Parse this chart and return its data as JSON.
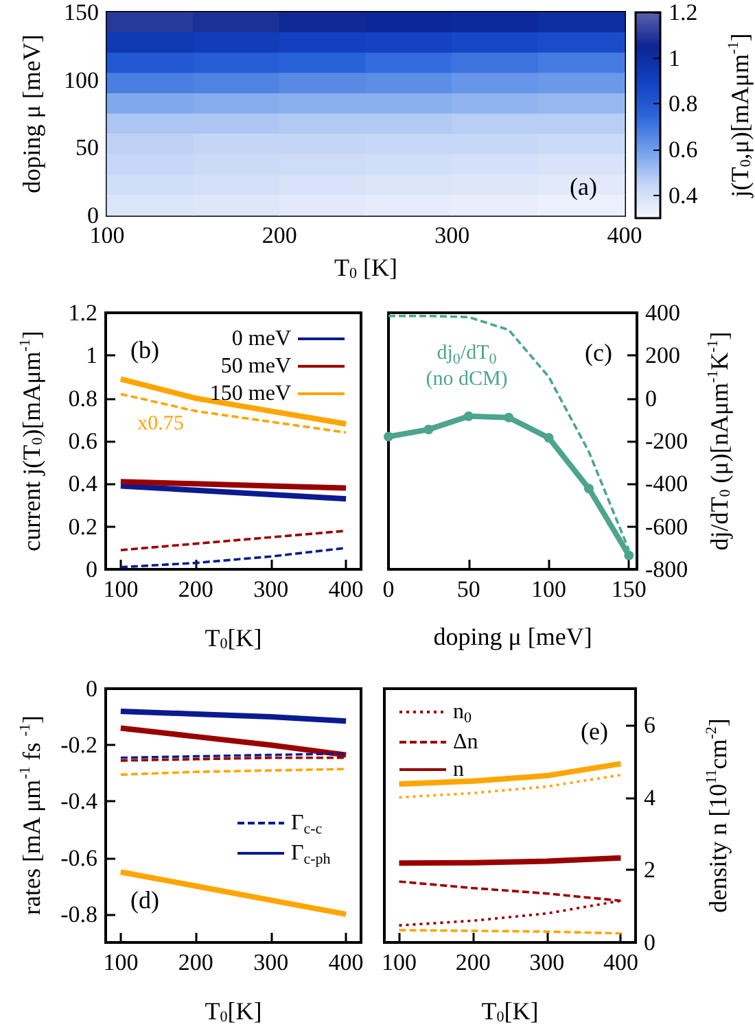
{
  "chart_data": [
    {
      "type": "heatmap",
      "xlabel": "T$_{0}$ [K]",
      "ylabel": "doping μ [meV]",
      "clabel": "j(T$_{0}$,μ)[mAμm$^{-1}$]",
      "annotations": [
        "(a)"
      ],
      "xlim": [
        100,
        400
      ],
      "xticks": [
        100,
        200,
        300,
        400
      ],
      "ylim": [
        0,
        150
      ],
      "yticks": [
        0,
        50,
        100,
        150
      ],
      "clim": [
        0.3,
        1.2
      ],
      "cticks": [
        0.4,
        0.6,
        0.8,
        1,
        1.2
      ],
      "cells": [
        [
          1.1,
          1.08,
          1.06,
          1.04,
          1.02,
          1.0
        ],
        [
          0.94,
          0.92,
          0.9,
          0.89,
          0.87,
          0.85
        ],
        [
          0.8,
          0.78,
          0.76,
          0.73,
          0.71,
          0.69
        ],
        [
          0.68,
          0.67,
          0.65,
          0.64,
          0.62,
          0.61
        ],
        [
          0.57,
          0.56,
          0.55,
          0.55,
          0.54,
          0.53
        ],
        [
          0.49,
          0.49,
          0.48,
          0.48,
          0.47,
          0.47
        ],
        [
          0.46,
          0.45,
          0.45,
          0.44,
          0.44,
          0.43
        ],
        [
          0.44,
          0.43,
          0.42,
          0.41,
          0.4,
          0.39
        ],
        [
          0.41,
          0.4,
          0.39,
          0.38,
          0.37,
          0.36
        ],
        [
          0.38,
          0.37,
          0.36,
          0.35,
          0.34,
          0.33
        ]
      ]
    },
    {
      "type": "line",
      "xlabel": "T$_{0}$[K]",
      "ylabel": "current j(T$_{0}$)[mAμm$^{-1}$]",
      "legend": "top right",
      "annotations": [
        "(b)",
        "x0.75"
      ],
      "x": [
        100,
        200,
        300,
        400
      ],
      "xlim": [
        80,
        420
      ],
      "xticks": [
        100,
        200,
        300,
        400
      ],
      "ylim": [
        0,
        1.2
      ],
      "yticks": [
        0,
        0.2,
        0.4,
        0.6,
        0.8,
        1,
        1.2
      ],
      "series": [
        {
          "name": "0 meV",
          "color": "#0b1b8f",
          "line_style": "solid",
          "values": [
            0.39,
            0.37,
            0.35,
            0.33
          ]
        },
        {
          "name": "50 meV",
          "color": "#990000",
          "line_style": "solid",
          "values": [
            0.41,
            0.4,
            0.39,
            0.38
          ]
        },
        {
          "name": "150 meV",
          "color": "#ffa500",
          "line_style": "solid",
          "values": [
            0.89,
            0.8,
            0.74,
            0.68
          ]
        },
        {
          "color": "#0b1b8f",
          "line_style": "dashed",
          "values": [
            0.01,
            0.03,
            0.06,
            0.1
          ]
        },
        {
          "color": "#990000",
          "line_style": "dashed",
          "values": [
            0.09,
            0.12,
            0.15,
            0.18
          ]
        },
        {
          "color": "#ffa500",
          "line_style": "dashed",
          "values": [
            0.82,
            0.74,
            0.69,
            0.64
          ]
        }
      ]
    },
    {
      "type": "line",
      "xlabel": "doping μ [meV]",
      "y2label": "dj/dT$_{0}$ (μ)[nAμm$^{-1}$K$^{-1}$]",
      "annotations": [
        "(c)",
        "dj$_{0}$/dT$_{0}$\n(no dCM)"
      ],
      "x": [
        0,
        25,
        50,
        75,
        100,
        125,
        150
      ],
      "xlim": [
        0,
        155
      ],
      "xticks": [
        0,
        50,
        100,
        150
      ],
      "y2lim": [
        -800,
        400
      ],
      "y2ticks": [
        -800,
        -600,
        -400,
        -200,
        0,
        200,
        400
      ],
      "series": [
        {
          "color": "#4ca58c",
          "axis": "y2",
          "line_style": "solid",
          "marker": "circle",
          "values": [
            -179,
            -146,
            -84,
            -90,
            -185,
            -422,
            -735
          ]
        },
        {
          "color": "#4ca58c",
          "axis": "y2",
          "line_style": "dashed",
          "values": [
            385,
            385,
            380,
            320,
            100,
            -250,
            -710
          ]
        }
      ]
    },
    {
      "type": "line",
      "xlabel": "T$_{0}$[K]",
      "ylabel": "rates [mA μm$^{-1}$ fs $^{-1}$]",
      "legend": "right",
      "annotations": [
        "(d)"
      ],
      "x": [
        100,
        200,
        300,
        400
      ],
      "xlim": [
        80,
        420
      ],
      "xticks": [
        100,
        200,
        300,
        400
      ],
      "ylim": [
        -0.9,
        0
      ],
      "yticks": [
        -0.8,
        -0.6,
        -0.4,
        -0.2,
        0
      ],
      "series": [
        {
          "name": "Γ$_{c-c}$",
          "color": "#0b1b8f",
          "line_style": "dashed",
          "values": [
            -0.245,
            -0.24,
            -0.235,
            -0.23
          ]
        },
        {
          "name": "Γ$_{c-ph}$",
          "color": "#0b1b8f",
          "line_style": "solid",
          "values": [
            -0.08,
            -0.09,
            -0.1,
            -0.115
          ]
        },
        {
          "color": "#990000",
          "line_style": "solid",
          "values": [
            -0.14,
            -0.17,
            -0.2,
            -0.235
          ]
        },
        {
          "color": "#ffa500",
          "line_style": "solid",
          "values": [
            -0.65,
            -0.7,
            -0.75,
            -0.8
          ]
        },
        {
          "color": "#990000",
          "line_style": "dashed",
          "values": [
            -0.255,
            -0.25,
            -0.245,
            -0.245
          ]
        },
        {
          "color": "#ffa500",
          "line_style": "dashed",
          "values": [
            -0.305,
            -0.295,
            -0.29,
            -0.285
          ]
        }
      ]
    },
    {
      "type": "line",
      "xlabel": "T$_{0}$[K]",
      "y2label": "density n [10$^{11}$cm$^{-2}$]",
      "legend": "top left",
      "annotations": [
        "(e)"
      ],
      "x": [
        100,
        200,
        300,
        400
      ],
      "xlim": [
        80,
        420
      ],
      "xticks": [
        100,
        200,
        300,
        400
      ],
      "y2lim": [
        0,
        7
      ],
      "y2ticks": [
        0,
        2,
        4,
        6
      ],
      "series": [
        {
          "name": "n$_{0}$",
          "color": "#990000",
          "axis": "y2",
          "line_style": "dotted",
          "values": [
            0.47,
            0.6,
            0.8,
            1.15
          ]
        },
        {
          "name": "Δn",
          "color": "#990000",
          "axis": "y2",
          "line_style": "dashed",
          "values": [
            1.68,
            1.5,
            1.35,
            1.15
          ]
        },
        {
          "name": "n",
          "color": "#990000",
          "axis": "y2",
          "line_style": "solid",
          "values": [
            2.19,
            2.2,
            2.24,
            2.33
          ]
        },
        {
          "color": "#ffa500",
          "axis": "y2",
          "line_style": "solid",
          "values": [
            4.37,
            4.45,
            4.6,
            4.93
          ]
        },
        {
          "color": "#ffa500",
          "axis": "y2",
          "line_style": "dotted",
          "values": [
            4.0,
            4.12,
            4.3,
            4.62
          ]
        },
        {
          "color": "#ffa500",
          "axis": "y2",
          "line_style": "dashed",
          "values": [
            0.34,
            0.32,
            0.3,
            0.25
          ]
        }
      ]
    }
  ]
}
